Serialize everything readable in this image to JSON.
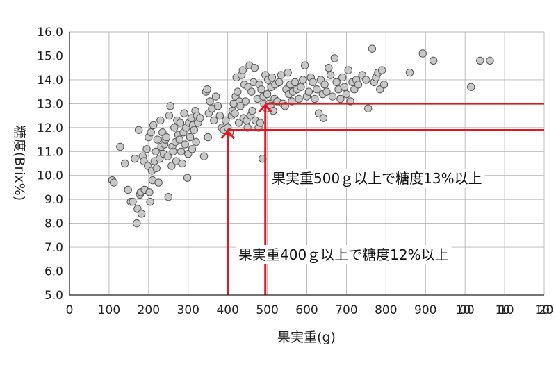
{
  "chart_data": {
    "type": "scatter",
    "xlabel": "果実重(g)",
    "ylabel": "糖度(Brix%)",
    "xlim": [
      0,
      1200
    ],
    "ylim": [
      5.0,
      16.0
    ],
    "x_ticks": [
      "0",
      "100",
      "200",
      "300",
      "400",
      "500",
      "600",
      "700",
      "800",
      "900",
      "1000",
      "1100",
      "1200"
    ],
    "y_ticks": [
      "5.0",
      "6.0",
      "7.0",
      "8.0",
      "9.0",
      "10.0",
      "11.0",
      "12.0",
      "13.0",
      "14.0",
      "15.0",
      "16.0"
    ],
    "grid": true,
    "marker_color": "#c8c8c8",
    "marker_edge": "#555555",
    "threshold_color": "#e8141e",
    "thresholds": [
      {
        "x": 400,
        "y": 11.9,
        "label": "果実重400ｇ以上で糖度12%以上"
      },
      {
        "x": 495,
        "y": 13.0,
        "label": "果実重500ｇ以上で糖度13%以上"
      }
    ],
    "points": [
      [
        108,
        9.8
      ],
      [
        112,
        9.7
      ],
      [
        128,
        11.2
      ],
      [
        140,
        10.5
      ],
      [
        148,
        9.4
      ],
      [
        155,
        8.9
      ],
      [
        160,
        8.9
      ],
      [
        165,
        10.7
      ],
      [
        170,
        8.0
      ],
      [
        172,
        8.6
      ],
      [
        175,
        11.9
      ],
      [
        178,
        9.2
      ],
      [
        180,
        9.3
      ],
      [
        182,
        8.4
      ],
      [
        185,
        10.8
      ],
      [
        188,
        10.6
      ],
      [
        190,
        9.4
      ],
      [
        195,
        11.1
      ],
      [
        198,
        10.4
      ],
      [
        200,
        11.6
      ],
      [
        202,
        9.3
      ],
      [
        204,
        8.9
      ],
      [
        206,
        11.8
      ],
      [
        208,
        10.2
      ],
      [
        210,
        9.8
      ],
      [
        212,
        12.1
      ],
      [
        215,
        10.6
      ],
      [
        218,
        11.0
      ],
      [
        220,
        10.3
      ],
      [
        222,
        11.5
      ],
      [
        225,
        9.7
      ],
      [
        228,
        10.7
      ],
      [
        230,
        12.3
      ],
      [
        232,
        11.2
      ],
      [
        235,
        11.8
      ],
      [
        238,
        10.9
      ],
      [
        240,
        11.3
      ],
      [
        242,
        11.5
      ],
      [
        245,
        11.6
      ],
      [
        248,
        10.8
      ],
      [
        250,
        9.1
      ],
      [
        252,
        12.5
      ],
      [
        255,
        12.9
      ],
      [
        258,
        10.4
      ],
      [
        260,
        11.2
      ],
      [
        262,
        11.0
      ],
      [
        265,
        12.0
      ],
      [
        268,
        11.4
      ],
      [
        270,
        10.6
      ],
      [
        272,
        12.3
      ],
      [
        275,
        11.7
      ],
      [
        278,
        11.5
      ],
      [
        280,
        12.2
      ],
      [
        282,
        11.0
      ],
      [
        285,
        10.5
      ],
      [
        288,
        11.8
      ],
      [
        290,
        12.6
      ],
      [
        292,
        11.3
      ],
      [
        295,
        12.0
      ],
      [
        298,
        9.9
      ],
      [
        300,
        10.9
      ],
      [
        302,
        12.2
      ],
      [
        305,
        11.6
      ],
      [
        308,
        12.4
      ],
      [
        310,
        11.1
      ],
      [
        312,
        12.1
      ],
      [
        315,
        11.9
      ],
      [
        318,
        12.7
      ],
      [
        320,
        11.4
      ],
      [
        322,
        12.5
      ],
      [
        325,
        12.2
      ],
      [
        330,
        12.4
      ],
      [
        340,
        10.8
      ],
      [
        345,
        13.5
      ],
      [
        348,
        13.6
      ],
      [
        350,
        11.6
      ],
      [
        352,
        12.6
      ],
      [
        355,
        13.1
      ],
      [
        360,
        12.8
      ],
      [
        365,
        12.3
      ],
      [
        370,
        13.3
      ],
      [
        375,
        12.9
      ],
      [
        380,
        12.5
      ],
      [
        385,
        12.0
      ],
      [
        390,
        11.9
      ],
      [
        395,
        12.3
      ],
      [
        400,
        12.0
      ],
      [
        405,
        11.8
      ],
      [
        410,
        12.5
      ],
      [
        412,
        12.7
      ],
      [
        415,
        13.0
      ],
      [
        418,
        12.6
      ],
      [
        420,
        13.3
      ],
      [
        422,
        14.1
      ],
      [
        425,
        13.5
      ],
      [
        428,
        12.2
      ],
      [
        430,
        13.1
      ],
      [
        432,
        12.9
      ],
      [
        435,
        14.2
      ],
      [
        438,
        14.4
      ],
      [
        440,
        12.4
      ],
      [
        442,
        13.8
      ],
      [
        445,
        13.1
      ],
      [
        448,
        12.3
      ],
      [
        450,
        12.0
      ],
      [
        452,
        13.7
      ],
      [
        455,
        14.6
      ],
      [
        458,
        12.5
      ],
      [
        460,
        13.5
      ],
      [
        462,
        12.7
      ],
      [
        465,
        13.9
      ],
      [
        468,
        14.5
      ],
      [
        470,
        12.3
      ],
      [
        475,
        13.2
      ],
      [
        478,
        12.0
      ],
      [
        480,
        13.8
      ],
      [
        482,
        12.2
      ],
      [
        485,
        13.6
      ],
      [
        488,
        10.7
      ],
      [
        490,
        13.3
      ],
      [
        492,
        13.0
      ],
      [
        495,
        14.2
      ],
      [
        498,
        12.8
      ],
      [
        500,
        13.4
      ],
      [
        502,
        14.0
      ],
      [
        505,
        13.0
      ],
      [
        508,
        12.9
      ],
      [
        510,
        13.7
      ],
      [
        512,
        14.1
      ],
      [
        515,
        12.7
      ],
      [
        518,
        13.2
      ],
      [
        520,
        13.8
      ],
      [
        525,
        13.1
      ],
      [
        530,
        13.9
      ],
      [
        535,
        14.2
      ],
      [
        540,
        13.0
      ],
      [
        545,
        12.9
      ],
      [
        548,
        13.6
      ],
      [
        552,
        14.3
      ],
      [
        555,
        13.4
      ],
      [
        558,
        13.8
      ],
      [
        562,
        13.1
      ],
      [
        565,
        13.5
      ],
      [
        570,
        13.9
      ],
      [
        575,
        13.6
      ],
      [
        580,
        13.2
      ],
      [
        585,
        13.7
      ],
      [
        590,
        14.0
      ],
      [
        595,
        14.6
      ],
      [
        600,
        13.3
      ],
      [
        605,
        13.5
      ],
      [
        610,
        14.1
      ],
      [
        615,
        13.9
      ],
      [
        620,
        13.2
      ],
      [
        625,
        13.6
      ],
      [
        630,
        12.6
      ],
      [
        635,
        14.0
      ],
      [
        640,
        13.4
      ],
      [
        642,
        12.4
      ],
      [
        645,
        13.8
      ],
      [
        650,
        13.5
      ],
      [
        655,
        14.5
      ],
      [
        660,
        14.2
      ],
      [
        665,
        13.3
      ],
      [
        670,
        14.9
      ],
      [
        675,
        13.9
      ],
      [
        680,
        13.6
      ],
      [
        685,
        13.2
      ],
      [
        690,
        14.1
      ],
      [
        695,
        13.7
      ],
      [
        700,
        13.4
      ],
      [
        705,
        14.4
      ],
      [
        710,
        13.1
      ],
      [
        715,
        13.9
      ],
      [
        720,
        13.6
      ],
      [
        725,
        14.0
      ],
      [
        730,
        13.8
      ],
      [
        740,
        14.2
      ],
      [
        750,
        14.0
      ],
      [
        755,
        12.8
      ],
      [
        765,
        15.3
      ],
      [
        770,
        13.9
      ],
      [
        775,
        14.1
      ],
      [
        780,
        14.3
      ],
      [
        785,
        13.6
      ],
      [
        790,
        14.4
      ],
      [
        795,
        13.8
      ],
      [
        860,
        14.3
      ],
      [
        893,
        15.1
      ],
      [
        920,
        14.8
      ],
      [
        1015,
        13.7
      ],
      [
        1038,
        14.8
      ],
      [
        1063,
        14.8
      ]
    ]
  }
}
